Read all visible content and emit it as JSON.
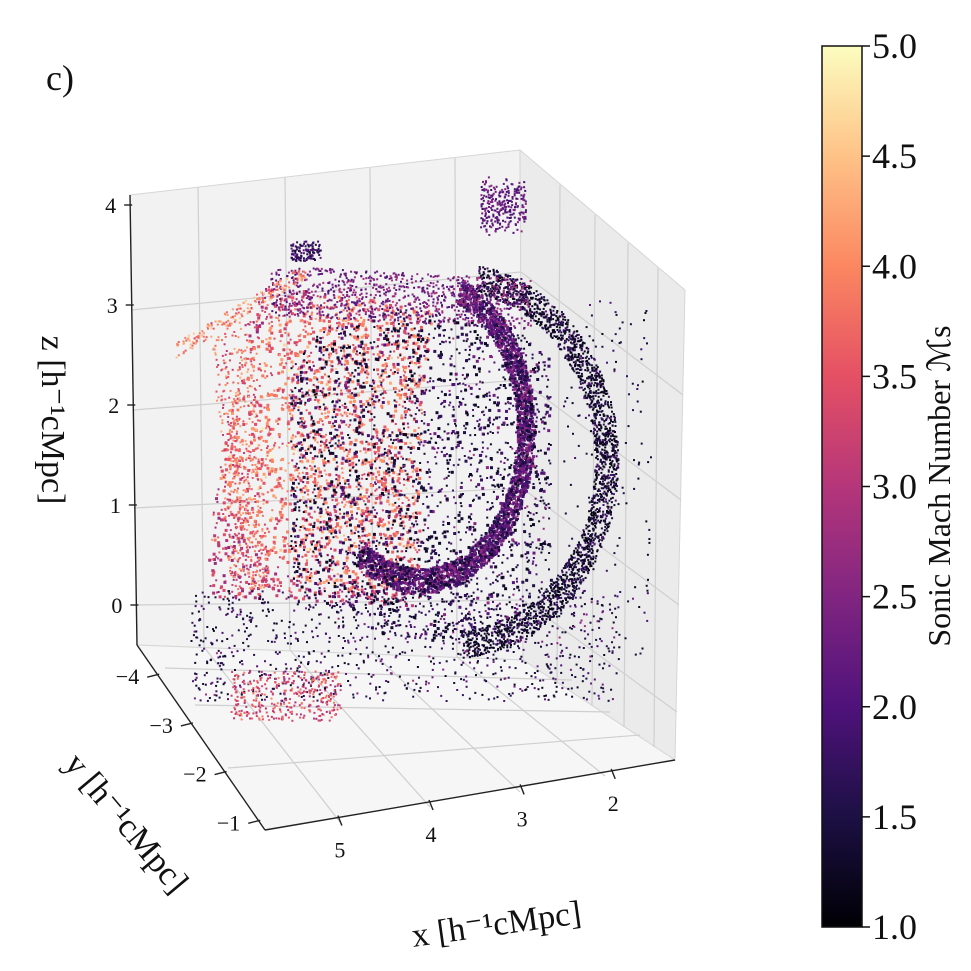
{
  "panel_label": "c)",
  "chart_data": {
    "type": "scatter",
    "projection": "3d",
    "description_of_marks": "dense 3D point cloud of shock cells colored by sonic Mach number",
    "x_axis": {
      "label": "x  [h⁻¹cMpc]",
      "ticks": [
        5,
        4,
        3,
        2
      ],
      "range": [
        1.3,
        5.8
      ]
    },
    "y_axis": {
      "label": "y  [h⁻¹cMpc]",
      "ticks": [
        -4,
        -3,
        -2,
        -1
      ],
      "range": [
        -4.6,
        -0.8
      ]
    },
    "z_axis": {
      "label": "z  [h⁻¹cMpc]",
      "ticks": [
        0,
        1,
        2,
        3,
        4
      ],
      "range": [
        -0.4,
        4.1
      ]
    },
    "colorbar": {
      "label": "Sonic Mach Number  ℳs",
      "colormap": "magma",
      "range": [
        1.0,
        5.0
      ],
      "ticks": [
        "1.0",
        "1.5",
        "2.0",
        "2.5",
        "3.0",
        "3.5",
        "4.0",
        "4.5",
        "5.0"
      ]
    },
    "grid": true,
    "colors": {
      "low": "#000004",
      "mid_low": "#51127c",
      "mid": "#b73779",
      "mid_high": "#fc8961",
      "high": "#fcfdbf"
    }
  }
}
